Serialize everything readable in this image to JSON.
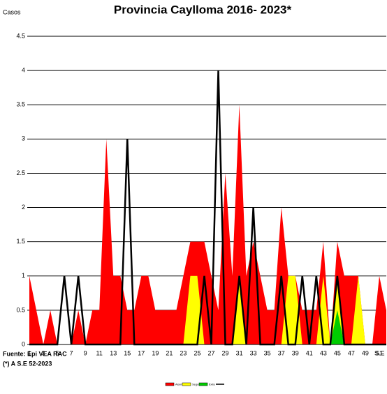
{
  "chart_data": {
    "type": "area",
    "title": "Provincia Caylloma 2016- 2023*",
    "ylabel": "Casos",
    "xlabel": "S.E",
    "source": "Fuente: Epi VEA RAC",
    "note": "(*) A S.E 52-2023",
    "categories": [
      1,
      null,
      3,
      null,
      5,
      null,
      7,
      null,
      9,
      null,
      11,
      null,
      13,
      null,
      15,
      null,
      17,
      null,
      19,
      null,
      21,
      null,
      23,
      null,
      25,
      null,
      27,
      null,
      29,
      null,
      31,
      null,
      33,
      null,
      35,
      null,
      37,
      null,
      39,
      null,
      41,
      null,
      43,
      null,
      45,
      null,
      47,
      null,
      49,
      null,
      51,
      null
    ],
    "series": [
      {
        "name": "Alarma",
        "color": "#ff0000",
        "kind": "area",
        "values": [
          1,
          0.5,
          0,
          0.5,
          0,
          0,
          0,
          0.5,
          0,
          0.5,
          0.5,
          3,
          1,
          1,
          0.5,
          0.5,
          1,
          1,
          0.5,
          0.5,
          0.5,
          0.5,
          1,
          1.5,
          1.5,
          1.5,
          1,
          0.5,
          2.5,
          1,
          3.5,
          1,
          1.5,
          1,
          0.5,
          0.5,
          2,
          1,
          1,
          0.5,
          0.5,
          0.5,
          1.5,
          0,
          1.5,
          1,
          1,
          1,
          0,
          0,
          1,
          0.5
        ]
      },
      {
        "name": "Seguridad",
        "color": "#ffff00",
        "kind": "area",
        "values": [
          0,
          0,
          0,
          0,
          0,
          0,
          0,
          0,
          0,
          0,
          0,
          0,
          0,
          0,
          0,
          0,
          0,
          0,
          0,
          0,
          0,
          0,
          0,
          1,
          1,
          0,
          0,
          0,
          0,
          0,
          1,
          0,
          0,
          0,
          0,
          0,
          0,
          1,
          1,
          0,
          0,
          0,
          1,
          0,
          1,
          0,
          0,
          1,
          0,
          0,
          0,
          0
        ]
      },
      {
        "name": "Éxito",
        "color": "#00cc00",
        "kind": "area",
        "values": [
          0,
          0,
          0,
          0,
          0,
          0,
          0,
          0,
          0,
          0,
          0,
          0,
          0,
          0,
          0,
          0,
          0,
          0,
          0,
          0,
          0,
          0,
          0,
          0,
          0,
          0,
          0,
          0,
          0,
          0,
          0,
          0,
          0,
          0,
          0,
          0,
          0,
          0,
          0,
          0,
          0,
          0,
          0,
          0,
          0.5,
          0,
          0,
          0,
          0,
          0,
          0,
          0
        ]
      },
      {
        "color": "#000000",
        "kind": "line",
        "values": [
          0,
          0,
          0,
          0,
          0,
          1,
          0,
          1,
          0,
          0,
          0,
          0,
          0,
          0,
          3,
          0,
          0,
          0,
          0,
          0,
          0,
          0,
          0,
          0,
          0,
          1,
          0,
          4,
          0,
          0,
          1,
          0,
          2,
          0,
          0,
          0,
          1,
          0,
          0,
          1,
          0,
          1,
          0,
          0,
          1,
          0,
          0,
          0,
          0,
          0,
          0,
          0
        ]
      }
    ],
    "ylim": [
      0,
      4.5
    ],
    "yticks": [
      0,
      0.5,
      1,
      1.5,
      2,
      2.5,
      3,
      3.5,
      4,
      4.5
    ],
    "grid": true
  }
}
